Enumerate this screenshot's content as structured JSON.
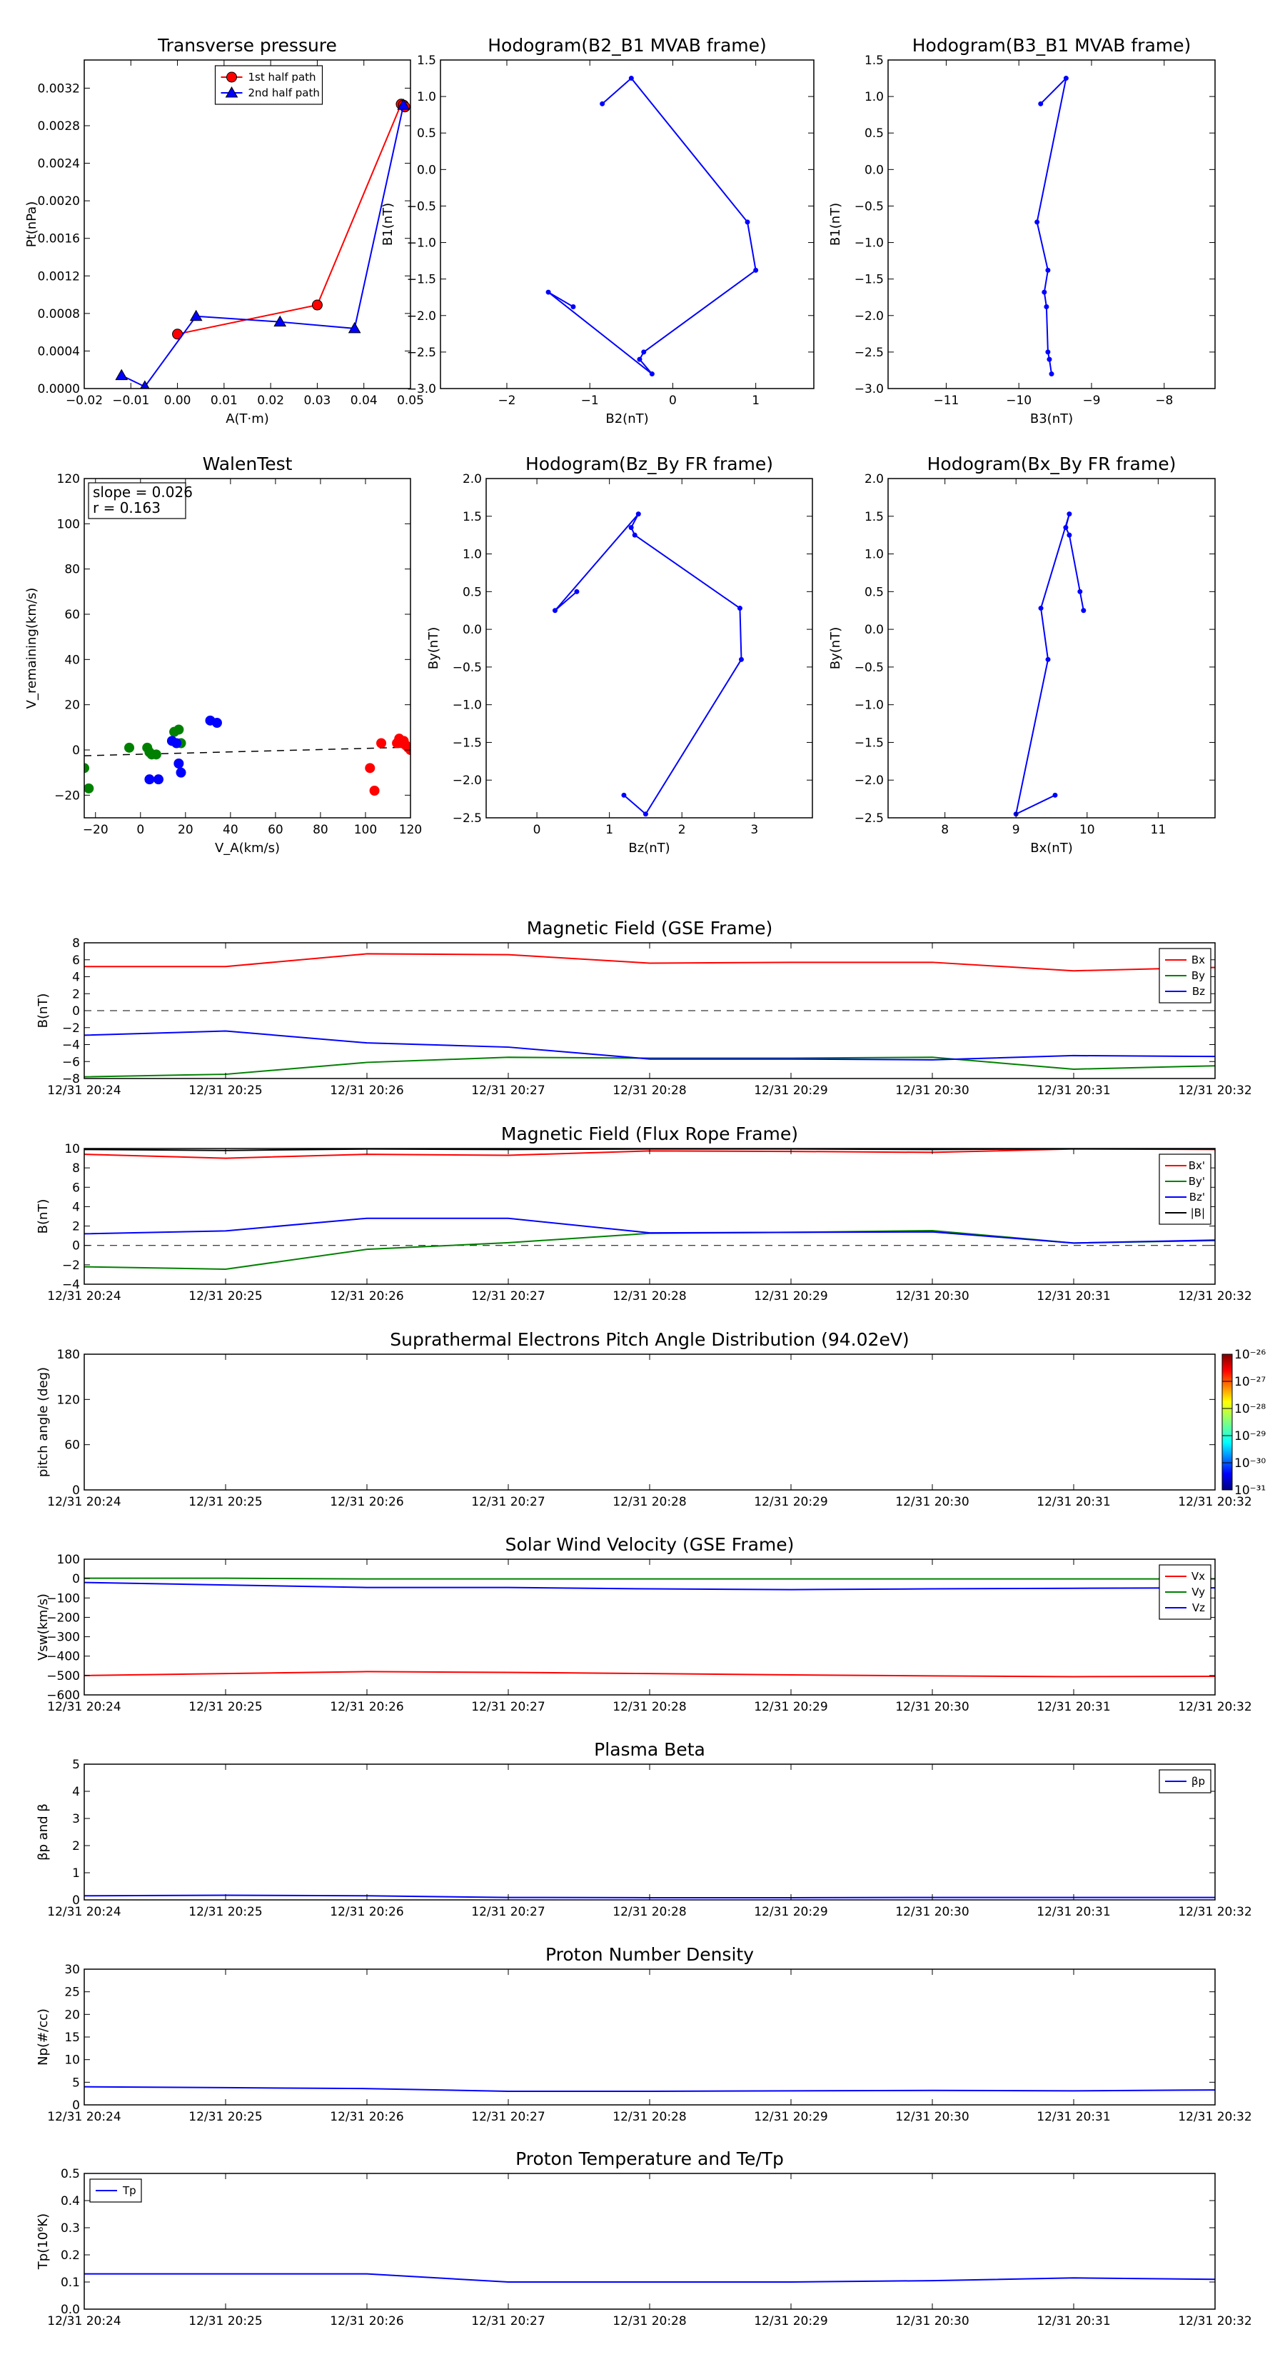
{
  "chart_data": [
    {
      "id": "tp",
      "type": "line",
      "title": "Transverse pressure",
      "xlabel": "A(T·m)",
      "ylabel": "Pt(nPa)",
      "xlim": [
        -0.02,
        0.05
      ],
      "ylim": [
        0,
        0.0035
      ],
      "xticks": [
        -0.02,
        -0.01,
        0.0,
        0.01,
        0.02,
        0.03,
        0.04,
        0.05
      ],
      "xtick_labels": [
        "−0.02",
        "−0.01",
        "0.00",
        "0.01",
        "0.02",
        "0.03",
        "0.04",
        "0.05"
      ],
      "yticks": [
        0,
        0.0004,
        0.0008,
        0.0012,
        0.0016,
        0.002,
        0.0024,
        0.0028,
        0.0032
      ],
      "ytick_labels": [
        "0.0000",
        "0.0004",
        "0.0008",
        "0.0012",
        "0.0016",
        "0.0020",
        "0.0024",
        "0.0028",
        "0.0032"
      ],
      "legend": "top-center",
      "series": [
        {
          "name": "1st half path",
          "color": "#ff0000",
          "marker": "circle",
          "x": [
            0.0,
            0.03,
            0.048,
            0.0485,
            0.0488
          ],
          "y": [
            0.00058,
            0.00089,
            0.00303,
            0.00302,
            0.003
          ]
        },
        {
          "name": "2nd half path",
          "color": "#0000ff",
          "marker": "triangle",
          "x": [
            0.0485,
            0.038,
            0.022,
            0.004,
            -0.007,
            -0.012
          ],
          "y": [
            0.00302,
            0.00064,
            0.00071,
            0.00077,
            2e-05,
            0.00014
          ]
        }
      ]
    },
    {
      "id": "hodo1",
      "type": "line",
      "title": "Hodogram(B2_B1 MVAB frame)",
      "xlabel": "B2(nT)",
      "ylabel": "B1(nT)",
      "xlim": [
        -2.8,
        1.7
      ],
      "ylim": [
        -3.0,
        1.5
      ],
      "xticks": [
        -2,
        -1,
        0,
        1
      ],
      "xtick_labels": [
        "−2",
        "−1",
        "0",
        "1"
      ],
      "yticks": [
        -3.0,
        -2.5,
        -2.0,
        -1.5,
        -1.0,
        -0.5,
        0.0,
        0.5,
        1.0,
        1.5
      ],
      "ytick_labels": [
        "−3.0",
        "−2.5",
        "−2.0",
        "−1.5",
        "−1.0",
        "−0.5",
        "0.0",
        "0.5",
        "1.0",
        "1.5"
      ],
      "series": [
        {
          "color": "#0000ff",
          "marker": "dot",
          "x": [
            -0.85,
            -0.5,
            0.9,
            1.0,
            -0.35,
            -0.4,
            -0.25,
            -1.5,
            -1.2
          ],
          "y": [
            0.9,
            1.25,
            -0.72,
            -1.38,
            -2.5,
            -2.6,
            -2.8,
            -1.68,
            -1.88
          ]
        }
      ]
    },
    {
      "id": "hodo2",
      "type": "line",
      "title": "Hodogram(B3_B1 MVAB frame)",
      "xlabel": "B3(nT)",
      "ylabel": "B1(nT)",
      "xlim": [
        -11.8,
        -7.3
      ],
      "ylim": [
        -3.0,
        1.5
      ],
      "xticks": [
        -11,
        -10,
        -9,
        -8
      ],
      "xtick_labels": [
        "−11",
        "−10",
        "−9",
        "−8"
      ],
      "yticks": [
        -3.0,
        -2.5,
        -2.0,
        -1.5,
        -1.0,
        -0.5,
        0.0,
        0.5,
        1.0,
        1.5
      ],
      "ytick_labels": [
        "−3.0",
        "−2.5",
        "−2.0",
        "−1.5",
        "−1.0",
        "−0.5",
        "0.0",
        "0.5",
        "1.0",
        "1.5"
      ],
      "series": [
        {
          "color": "#0000ff",
          "marker": "dot",
          "x": [
            -9.7,
            -9.35,
            -9.75,
            -9.6,
            -9.65,
            -9.62,
            -9.6,
            -9.58,
            -9.55
          ],
          "y": [
            0.9,
            1.25,
            -0.72,
            -1.38,
            -1.68,
            -1.88,
            -2.5,
            -2.6,
            -2.8
          ]
        }
      ]
    },
    {
      "id": "walen",
      "type": "scatter",
      "title": "WalenTest",
      "xlabel": "V_A(km/s)",
      "ylabel": "V_remaining(km/s)",
      "annotations": [
        "slope = 0.026",
        "r = 0.163"
      ],
      "xlim": [
        -25,
        120
      ],
      "ylim": [
        -30,
        120
      ],
      "xticks": [
        -20,
        0,
        20,
        40,
        60,
        80,
        100,
        120
      ],
      "xtick_labels": [
        "−20",
        "0",
        "20",
        "40",
        "60",
        "80",
        "100",
        "120"
      ],
      "yticks": [
        -20,
        0,
        20,
        40,
        60,
        80,
        100,
        120
      ],
      "ytick_labels": [
        "−20",
        "0",
        "20",
        "40",
        "60",
        "80",
        "100",
        "120"
      ],
      "fit": {
        "slope": 0.026,
        "intercept": -1.9
      },
      "series": [
        {
          "color": "#008000",
          "x": [
            -25,
            -23,
            -5,
            3,
            4,
            5,
            7,
            15,
            17,
            18
          ],
          "y": [
            -8,
            -17,
            1,
            1,
            -1,
            -2,
            -2,
            8,
            9,
            3
          ]
        },
        {
          "color": "#0000ff",
          "x": [
            4,
            8,
            14,
            16,
            17,
            18,
            31,
            34
          ],
          "y": [
            -13,
            -13,
            4,
            3,
            -6,
            -10,
            13,
            12
          ]
        },
        {
          "color": "#ff0000",
          "x": [
            102,
            104,
            107,
            114,
            115,
            116,
            117,
            118,
            119,
            120
          ],
          "y": [
            -8,
            -18,
            3,
            3,
            5,
            3,
            4,
            2,
            1,
            0
          ]
        }
      ]
    },
    {
      "id": "hodo3",
      "type": "line",
      "title": "Hodogram(Bz_By FR frame)",
      "xlabel": "Bz(nT)",
      "ylabel": "By(nT)",
      "xlim": [
        -0.7,
        3.8
      ],
      "ylim": [
        -2.5,
        2.0
      ],
      "xticks": [
        0,
        1,
        2,
        3
      ],
      "xtick_labels": [
        "0",
        "1",
        "2",
        "3"
      ],
      "yticks": [
        -2.5,
        -2.0,
        -1.5,
        -1.0,
        -0.5,
        0.0,
        0.5,
        1.0,
        1.5,
        2.0
      ],
      "ytick_labels": [
        "−2.5",
        "−2.0",
        "−1.5",
        "−1.0",
        "−0.5",
        "0.0",
        "0.5",
        "1.0",
        "1.5",
        "2.0"
      ],
      "series": [
        {
          "color": "#0000ff",
          "marker": "dot",
          "x": [
            0.55,
            0.25,
            1.4,
            1.3,
            1.35,
            2.8,
            2.82,
            1.5,
            1.2
          ],
          "y": [
            0.5,
            0.25,
            1.53,
            1.35,
            1.25,
            0.28,
            -0.4,
            -2.45,
            -2.2
          ]
        }
      ]
    },
    {
      "id": "hodo4",
      "type": "line",
      "title": "Hodogram(Bx_By FR frame)",
      "xlabel": "Bx(nT)",
      "ylabel": "By(nT)",
      "xlim": [
        7.2,
        11.8
      ],
      "ylim": [
        -2.5,
        2.0
      ],
      "xticks": [
        8,
        9,
        10,
        11
      ],
      "xtick_labels": [
        "8",
        "9",
        "10",
        "11"
      ],
      "yticks": [
        -2.5,
        -2.0,
        -1.5,
        -1.0,
        -0.5,
        0.0,
        0.5,
        1.0,
        1.5,
        2.0
      ],
      "ytick_labels": [
        "−2.5",
        "−2.0",
        "−1.5",
        "−1.0",
        "−0.5",
        "0.0",
        "0.5",
        "1.0",
        "1.5",
        "2.0"
      ],
      "series": [
        {
          "color": "#0000ff",
          "marker": "dot",
          "x": [
            9.9,
            9.95,
            9.75,
            9.7,
            9.75,
            9.35,
            9.45,
            9.0,
            9.55
          ],
          "y": [
            0.5,
            0.25,
            1.25,
            1.35,
            1.53,
            0.28,
            -0.4,
            -2.45,
            -2.2
          ]
        }
      ]
    },
    {
      "id": "mag_gse",
      "type": "line",
      "title": "Magnetic Field (GSE Frame)",
      "ylabel": "B(nT)",
      "categories": [
        "12/31 20:24",
        "12/31 20:25",
        "12/31 20:26",
        "12/31 20:27",
        "12/31 20:28",
        "12/31 20:29",
        "12/31 20:30",
        "12/31 20:31",
        "12/31 20:32"
      ],
      "ylim": [
        -8,
        8
      ],
      "yticks": [
        -8,
        -6,
        -4,
        -2,
        0,
        2,
        4,
        6,
        8
      ],
      "ytick_labels": [
        "−8",
        "−6",
        "−4",
        "−2",
        "0",
        "2",
        "4",
        "6",
        "8"
      ],
      "zero_line": true,
      "legend": "top-right",
      "series": [
        {
          "name": "Bx",
          "color": "#ff0000",
          "values": [
            5.2,
            5.2,
            6.7,
            6.6,
            5.6,
            5.7,
            5.7,
            4.7,
            5.1
          ]
        },
        {
          "name": "By",
          "color": "#008000",
          "values": [
            -7.8,
            -7.5,
            -6.1,
            -5.5,
            -5.6,
            -5.6,
            -5.5,
            -6.9,
            -6.5
          ]
        },
        {
          "name": "Bz",
          "color": "#0000ff",
          "values": [
            -2.9,
            -2.4,
            -3.8,
            -4.3,
            -5.7,
            -5.7,
            -5.8,
            -5.3,
            -5.4
          ]
        }
      ]
    },
    {
      "id": "mag_fr",
      "type": "line",
      "title": "Magnetic Field (Flux Rope Frame)",
      "ylabel": "B(nT)",
      "categories": [
        "12/31 20:24",
        "12/31 20:25",
        "12/31 20:26",
        "12/31 20:27",
        "12/31 20:28",
        "12/31 20:29",
        "12/31 20:30",
        "12/31 20:31",
        "12/31 20:32"
      ],
      "ylim": [
        -4,
        10
      ],
      "yticks": [
        -4,
        -2,
        0,
        2,
        4,
        6,
        8,
        10
      ],
      "ytick_labels": [
        "−4",
        "−2",
        "0",
        "2",
        "4",
        "6",
        "8",
        "10"
      ],
      "zero_line": true,
      "legend": "top-right",
      "series": [
        {
          "name": "Bx'",
          "color": "#ff0000",
          "values": [
            9.4,
            9.0,
            9.4,
            9.3,
            9.75,
            9.7,
            9.6,
            9.95,
            9.9
          ]
        },
        {
          "name": "By'",
          "color": "#008000",
          "values": [
            -2.2,
            -2.45,
            -0.4,
            0.28,
            1.25,
            1.35,
            1.53,
            0.25,
            0.5
          ]
        },
        {
          "name": "Bz'",
          "color": "#0000ff",
          "values": [
            1.2,
            1.5,
            2.8,
            2.8,
            1.3,
            1.35,
            1.4,
            0.25,
            0.55
          ]
        },
        {
          "name": "|B|",
          "color": "#000000",
          "values": [
            9.9,
            9.8,
            9.95,
            9.9,
            9.95,
            9.95,
            9.9,
            9.97,
            9.95
          ]
        }
      ]
    },
    {
      "id": "pad",
      "type": "heatmap",
      "title": "Suprathermal Electrons Pitch Angle Distribution (94.02eV)",
      "ylabel": "pitch angle (deg)",
      "categories": [
        "12/31 20:24",
        "12/31 20:25",
        "12/31 20:26",
        "12/31 20:27",
        "12/31 20:28",
        "12/31 20:29",
        "12/31 20:30",
        "12/31 20:31",
        "12/31 20:32"
      ],
      "ylim": [
        0,
        180
      ],
      "yticks": [
        0,
        60,
        120,
        180
      ],
      "ytick_labels": [
        "0",
        "60",
        "120",
        "180"
      ],
      "colorbar": {
        "labels": [
          "10⁻²⁶",
          "10⁻²⁷",
          "10⁻²⁸",
          "10⁻²⁹",
          "10⁻³⁰",
          "10⁻³¹"
        ]
      }
    },
    {
      "id": "vsw",
      "type": "line",
      "title": "Solar Wind Velocity (GSE Frame)",
      "ylabel": "Vsw(km/s)",
      "categories": [
        "12/31 20:24",
        "12/31 20:25",
        "12/31 20:26",
        "12/31 20:27",
        "12/31 20:28",
        "12/31 20:29",
        "12/31 20:30",
        "12/31 20:31",
        "12/31 20:32"
      ],
      "ylim": [
        -600,
        100
      ],
      "yticks": [
        -600,
        -500,
        -400,
        -300,
        -200,
        -100,
        0,
        100
      ],
      "ytick_labels": [
        "−600",
        "−500",
        "−400",
        "−300",
        "−200",
        "−100",
        "0",
        "100"
      ],
      "legend": "top-right",
      "series": [
        {
          "name": "Vx",
          "color": "#ff0000",
          "values": [
            -500,
            -490,
            -480,
            -484,
            -490,
            -497,
            -502,
            -506,
            -504
          ]
        },
        {
          "name": "Vy",
          "color": "#008000",
          "values": [
            2,
            2,
            -2,
            -2,
            -2,
            -2,
            -2,
            -2,
            -2
          ]
        },
        {
          "name": "Vz",
          "color": "#0000ff",
          "values": [
            -20,
            -33,
            -46,
            -46,
            -53,
            -57,
            -53,
            -50,
            -48
          ]
        }
      ]
    },
    {
      "id": "beta",
      "type": "line",
      "title": "Plasma Beta",
      "ylabel": "βp and β",
      "categories": [
        "12/31 20:24",
        "12/31 20:25",
        "12/31 20:26",
        "12/31 20:27",
        "12/31 20:28",
        "12/31 20:29",
        "12/31 20:30",
        "12/31 20:31",
        "12/31 20:32"
      ],
      "ylim": [
        0,
        5
      ],
      "yticks": [
        0,
        1,
        2,
        3,
        4,
        5
      ],
      "ytick_labels": [
        "0",
        "1",
        "2",
        "3",
        "4",
        "5"
      ],
      "legend": "top-right",
      "series": [
        {
          "name": "βp",
          "color": "#0000ff",
          "values": [
            0.15,
            0.17,
            0.15,
            0.09,
            0.08,
            0.08,
            0.09,
            0.09,
            0.09
          ]
        }
      ]
    },
    {
      "id": "np",
      "type": "line",
      "title": "Proton Number Density",
      "ylabel": "Np(#/cc)",
      "categories": [
        "12/31 20:24",
        "12/31 20:25",
        "12/31 20:26",
        "12/31 20:27",
        "12/31 20:28",
        "12/31 20:29",
        "12/31 20:30",
        "12/31 20:31",
        "12/31 20:32"
      ],
      "ylim": [
        0,
        30
      ],
      "yticks": [
        0,
        5,
        10,
        15,
        20,
        25,
        30
      ],
      "ytick_labels": [
        "0",
        "5",
        "10",
        "15",
        "20",
        "25",
        "30"
      ],
      "series": [
        {
          "color": "#0000ff",
          "values": [
            4.0,
            3.8,
            3.6,
            3.0,
            3.0,
            3.1,
            3.2,
            3.1,
            3.3
          ]
        }
      ]
    },
    {
      "id": "temp",
      "type": "line",
      "title": "Proton Temperature and Te/Tp",
      "ylabel": "Tp(10⁶K)",
      "categories": [
        "12/31 20:24",
        "12/31 20:25",
        "12/31 20:26",
        "12/31 20:27",
        "12/31 20:28",
        "12/31 20:29",
        "12/31 20:30",
        "12/31 20:31",
        "12/31 20:32"
      ],
      "ylim": [
        0,
        0.5
      ],
      "yticks": [
        0,
        0.1,
        0.2,
        0.3,
        0.4,
        0.5
      ],
      "ytick_labels": [
        "0.0",
        "0.1",
        "0.2",
        "0.3",
        "0.4",
        "0.5"
      ],
      "legend": "top-left",
      "series": [
        {
          "name": "Tp",
          "color": "#0000ff",
          "values": [
            0.13,
            0.13,
            0.13,
            0.1,
            0.1,
            0.1,
            0.105,
            0.115,
            0.11
          ]
        }
      ]
    }
  ]
}
